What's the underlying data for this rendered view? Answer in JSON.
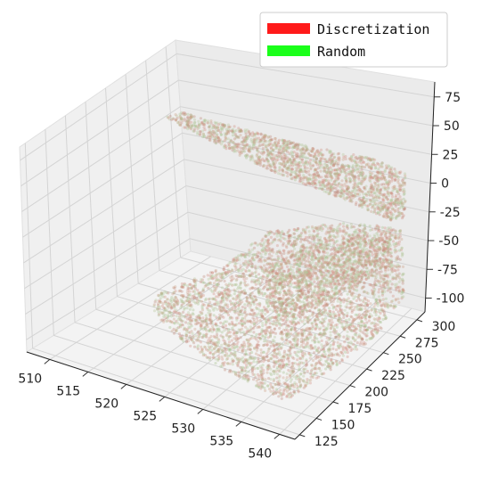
{
  "chart_data": {
    "type": "scatter",
    "projection": "3d",
    "grid": true,
    "legend_position": "top-right",
    "x_axis": {
      "ticks": [
        "510",
        "515",
        "520",
        "525",
        "530",
        "535",
        "540"
      ],
      "range": [
        507,
        542
      ]
    },
    "y_axis": {
      "ticks": [
        "125",
        "150",
        "175",
        "200",
        "225",
        "250",
        "275",
        "300"
      ],
      "range": [
        118,
        312
      ]
    },
    "z_axis": {
      "ticks": [
        "-100",
        "-75",
        "-50",
        "-25",
        "0",
        "25",
        "50",
        "75"
      ],
      "range": [
        -112,
        88
      ]
    },
    "series": [
      {
        "name": "Discretization",
        "color": "#ff1a1a"
      },
      {
        "name": "Random",
        "color": "#1aff1a"
      }
    ],
    "point_cloud_colors": [
      "#c08a7a",
      "#b7c59a",
      "#d28f80",
      "#a7bf8d",
      "#caa188"
    ]
  }
}
